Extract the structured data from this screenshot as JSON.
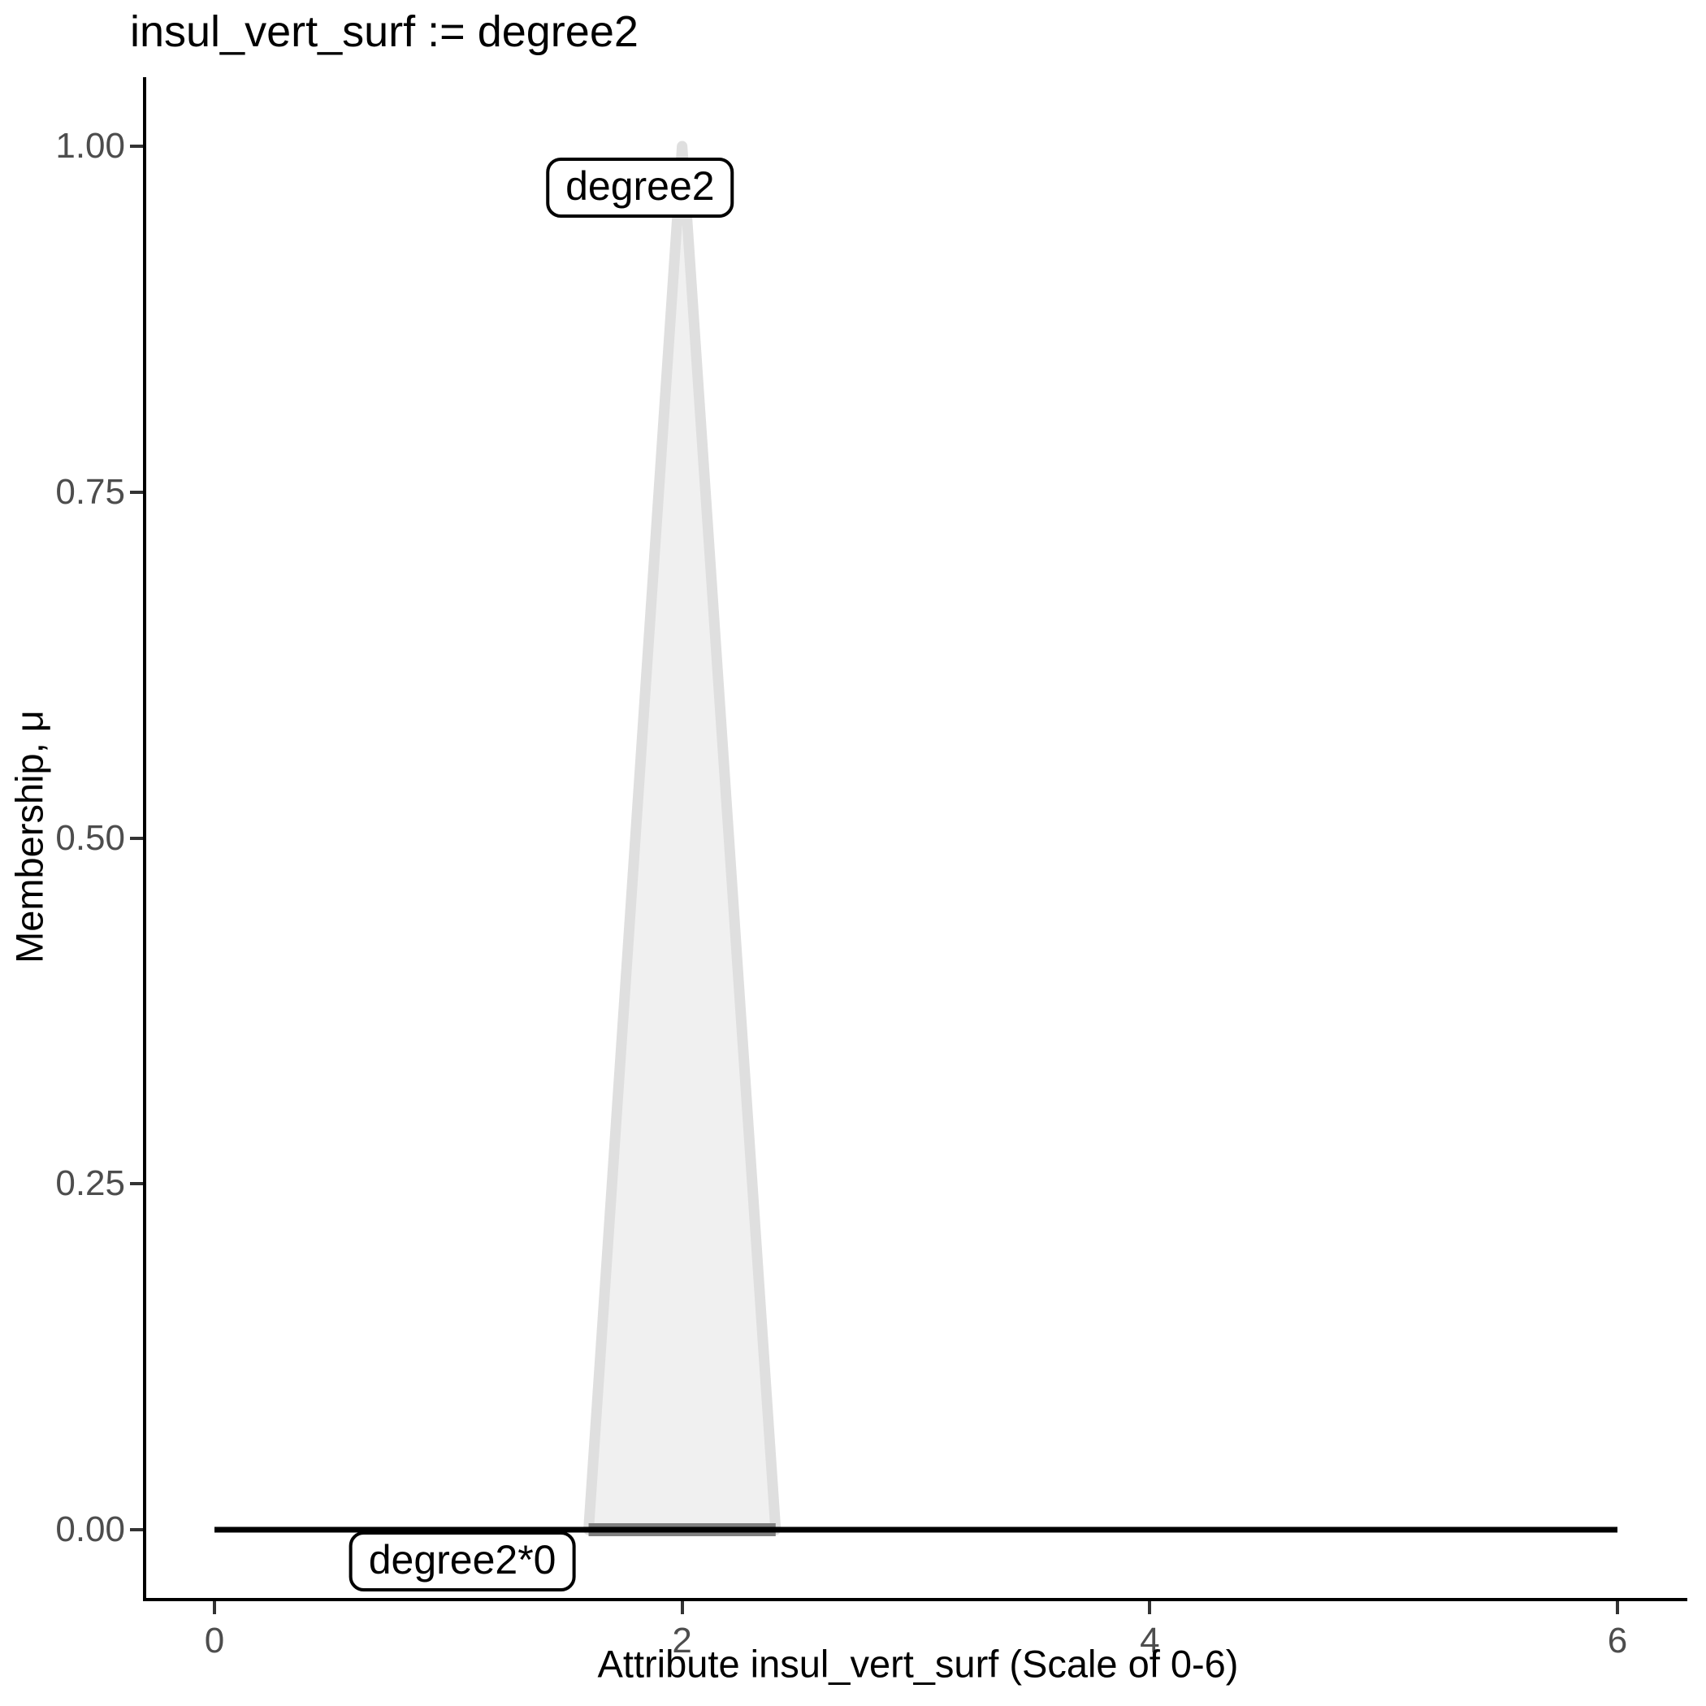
{
  "title": "insul_vert_surf := degree2",
  "axes": {
    "x": {
      "label": "Attribute insul_vert_surf (Scale of 0-6)",
      "ticks": [
        {
          "v": 0,
          "t": "0"
        },
        {
          "v": 2,
          "t": "2"
        },
        {
          "v": 4,
          "t": "4"
        },
        {
          "v": 6,
          "t": "6"
        }
      ]
    },
    "y": {
      "label": "Membership, μ",
      "ticks": [
        {
          "v": 1.0,
          "t": "1.00"
        },
        {
          "v": 0.75,
          "t": "0.75"
        },
        {
          "v": 0.5,
          "t": "0.50"
        },
        {
          "v": 0.25,
          "t": "0.25"
        },
        {
          "v": 0.0,
          "t": "0.00"
        }
      ]
    }
  },
  "colors": {
    "triangle_fill": "#f0f0f0",
    "triangle_stroke": "#dfdfdf",
    "support_base": "#808080",
    "zero_line": "#000000",
    "tick_label": "#4d4d4d",
    "axis_line": "#000000"
  },
  "chart_data": {
    "type": "area",
    "title": "insul_vert_surf := degree2",
    "xlabel": "Attribute insul_vert_surf (Scale of 0-6)",
    "ylabel": "Membership, μ",
    "xlim": [
      0,
      6
    ],
    "ylim": [
      0,
      1
    ],
    "x_ticks": [
      0,
      2,
      4,
      6
    ],
    "y_ticks": [
      0,
      0.25,
      0.5,
      0.75,
      1.0
    ],
    "grid": false,
    "legend": "none",
    "series": [
      {
        "name": "degree2",
        "kind": "polygon",
        "points": [
          [
            1.6,
            0
          ],
          [
            2,
            1
          ],
          [
            2.4,
            0
          ]
        ],
        "fill": "#f0f0f0",
        "stroke": "#dfdfdf"
      },
      {
        "name": "degree2-support-base",
        "kind": "line",
        "points": [
          [
            1.6,
            0
          ],
          [
            2.4,
            0
          ]
        ],
        "stroke": "#808080"
      },
      {
        "name": "degree2*0",
        "kind": "line",
        "points": [
          [
            0,
            0
          ],
          [
            6,
            0
          ]
        ],
        "stroke": "#000000"
      }
    ],
    "annotations": [
      {
        "text": "degree2",
        "x": 1.82,
        "y": 0.97
      },
      {
        "text": "degree2*0",
        "x": 1.06,
        "y": -0.023
      }
    ]
  }
}
